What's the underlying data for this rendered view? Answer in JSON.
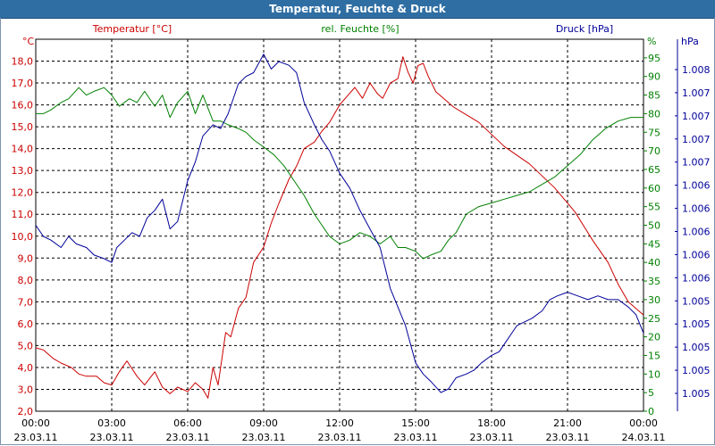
{
  "window": {
    "title": "Temperatur, Feuchte & Druck"
  },
  "colors": {
    "temperature": "#cc0000",
    "humidity": "#008000",
    "pressure": "#000099",
    "grid": "#000000",
    "titlebar": "#2f6ea3"
  },
  "chart_data": {
    "type": "line",
    "title": "Temperatur, Feuchte & Druck",
    "x_ticks": [
      {
        "time": "00:00",
        "date": "23.03.11"
      },
      {
        "time": "03:00",
        "date": "23.03.11"
      },
      {
        "time": "06:00",
        "date": "23.03.11"
      },
      {
        "time": "09:00",
        "date": "23.03.11"
      },
      {
        "time": "12:00",
        "date": "23.03.11"
      },
      {
        "time": "15:00",
        "date": "23.03.11"
      },
      {
        "time": "18:00",
        "date": "23.03.11"
      },
      {
        "time": "21:00",
        "date": "23.03.11"
      },
      {
        "time": "00:00",
        "date": "24.03.11"
      }
    ],
    "x_range_hours": [
      0,
      24
    ],
    "axes": {
      "temperature": {
        "label": "Temperatur [°C]",
        "unit": "°C",
        "range": [
          2.0,
          19.0
        ],
        "ticks": [
          "18,0",
          "17,0",
          "16,0",
          "15,0",
          "14,0",
          "13,0",
          "12,0",
          "11,0",
          "10,0",
          "9,0",
          "8,0",
          "7,0",
          "6,0",
          "5,0",
          "4,0",
          "3,0",
          "2,0"
        ]
      },
      "humidity": {
        "label": "rel. Feuchte [%]",
        "unit": "%",
        "range": [
          0,
          100
        ],
        "ticks": [
          "95",
          "90",
          "85",
          "80",
          "75",
          "70",
          "65",
          "60",
          "55",
          "50",
          "45",
          "40",
          "35",
          "30",
          "25",
          "20",
          "15",
          "10",
          "5",
          "0"
        ]
      },
      "pressure": {
        "label": "Druck [hPa]",
        "unit": "hPa",
        "range_pixel_mapped": [
          0,
          100
        ],
        "ticks": [
          "1.008",
          "1.007",
          "1.007",
          "1.007",
          "1.007",
          "1.006",
          "1.006",
          "1.006",
          "1.006",
          "1.006",
          "1.005",
          "1.005",
          "1.005",
          "1.005",
          "1.005"
        ]
      }
    },
    "series": [
      {
        "name": "Temperatur [°C]",
        "axis": "temperature",
        "x": [
          0,
          0.3,
          0.7,
          1,
          1.4,
          1.7,
          2,
          2.4,
          2.7,
          3,
          3.3,
          3.6,
          4,
          4.3,
          4.7,
          5,
          5.3,
          5.6,
          6,
          6.3,
          6.6,
          6.8,
          7,
          7.2,
          7.4,
          7.5,
          7.7,
          8,
          8.3,
          8.6,
          9,
          9.3,
          9.6,
          10,
          10.3,
          10.6,
          11,
          11.3,
          11.6,
          12,
          12.3,
          12.6,
          12.9,
          13.2,
          13.5,
          13.7,
          14,
          14.3,
          14.5,
          14.7,
          14.9,
          15.1,
          15.3,
          15.5,
          15.8,
          16.5,
          17.5,
          18.5,
          19.5,
          20.5,
          21.3,
          22,
          22.6,
          23,
          23.4,
          23.7,
          24
        ],
        "values": [
          4.9,
          4.8,
          4.4,
          4.2,
          4.0,
          3.7,
          3.6,
          3.6,
          3.3,
          3.2,
          3.8,
          4.3,
          3.6,
          3.2,
          3.8,
          3.1,
          2.8,
          3.1,
          2.9,
          3.3,
          3.0,
          2.6,
          4.0,
          3.2,
          4.8,
          5.6,
          5.4,
          6.7,
          7.2,
          8.8,
          9.5,
          10.6,
          11.5,
          12.6,
          13.2,
          14.0,
          14.3,
          14.8,
          15.2,
          16.0,
          16.4,
          16.8,
          16.3,
          17.0,
          16.5,
          16.3,
          17.0,
          17.2,
          18.2,
          17.5,
          17.0,
          17.8,
          17.9,
          17.3,
          16.6,
          15.9,
          15.2,
          14.1,
          13.3,
          12.2,
          11.1,
          9.8,
          8.8,
          7.8,
          7.0,
          6.7,
          6.4
        ]
      },
      {
        "name": "rel. Feuchte [%]",
        "axis": "humidity",
        "x": [
          0,
          0.3,
          0.6,
          1,
          1.3,
          1.7,
          2,
          2.3,
          2.7,
          3,
          3.3,
          3.7,
          4,
          4.3,
          4.7,
          5,
          5.3,
          5.6,
          6,
          6.3,
          6.6,
          7,
          7.3,
          7.6,
          8,
          8.3,
          8.6,
          9,
          9.4,
          9.8,
          10.2,
          10.6,
          11,
          11.3,
          11.6,
          12,
          12.4,
          12.8,
          13.2,
          13.6,
          14,
          14.3,
          14.6,
          15,
          15.3,
          15.6,
          16,
          16.3,
          16.6,
          17,
          17.5,
          18,
          18.5,
          19,
          19.5,
          20,
          20.5,
          21,
          21.5,
          22,
          22.5,
          23,
          23.5,
          24
        ],
        "values": [
          80,
          80,
          81,
          83,
          84,
          87,
          85,
          86,
          87,
          85,
          82,
          84,
          83,
          86,
          82,
          85,
          79,
          83,
          86,
          80,
          85,
          78,
          78,
          77,
          76,
          75,
          73,
          71,
          69,
          66,
          62,
          58,
          53,
          50,
          47,
          45,
          46,
          48,
          47,
          45,
          47,
          44,
          44,
          43,
          41,
          42,
          43,
          46,
          48,
          53,
          55,
          56,
          57,
          58,
          59,
          61,
          63,
          66,
          69,
          73,
          76,
          78,
          79,
          79
        ]
      },
      {
        "name": "Druck [hPa]",
        "axis": "pressure",
        "x": [
          0,
          0.3,
          0.6,
          1,
          1.3,
          1.6,
          2,
          2.3,
          2.7,
          3,
          3.2,
          3.5,
          3.8,
          4.1,
          4.4,
          4.7,
          5,
          5.3,
          5.6,
          6,
          6.3,
          6.6,
          7,
          7.3,
          7.6,
          8,
          8.3,
          8.6,
          9,
          9.3,
          9.6,
          10,
          10.3,
          10.6,
          11,
          11.3,
          11.6,
          12,
          12.4,
          12.8,
          13.2,
          13.6,
          14,
          14.3,
          14.6,
          15,
          15.3,
          15.6,
          16,
          16.3,
          16.6,
          17,
          17.3,
          17.6,
          18,
          18.3,
          18.6,
          19,
          19.3,
          19.6,
          20,
          20.3,
          20.6,
          21,
          21.4,
          21.8,
          22.2,
          22.6,
          23,
          23.4,
          23.7,
          24
        ],
        "values": [
          50,
          47,
          46,
          44,
          47,
          45,
          44,
          42,
          41,
          40,
          44,
          46,
          48,
          47,
          52,
          54,
          57,
          49,
          51,
          62,
          67,
          74,
          77,
          76,
          80,
          88,
          90,
          91,
          96,
          92,
          94,
          93,
          91,
          83,
          77,
          73,
          70,
          64,
          60,
          54,
          49,
          44,
          33,
          28,
          23,
          13,
          10,
          8,
          5,
          6,
          9,
          10,
          11,
          13,
          15,
          16,
          19,
          23,
          24,
          25,
          27,
          30,
          31,
          32,
          31,
          30,
          31,
          30,
          30,
          28,
          26,
          21
        ]
      }
    ]
  }
}
